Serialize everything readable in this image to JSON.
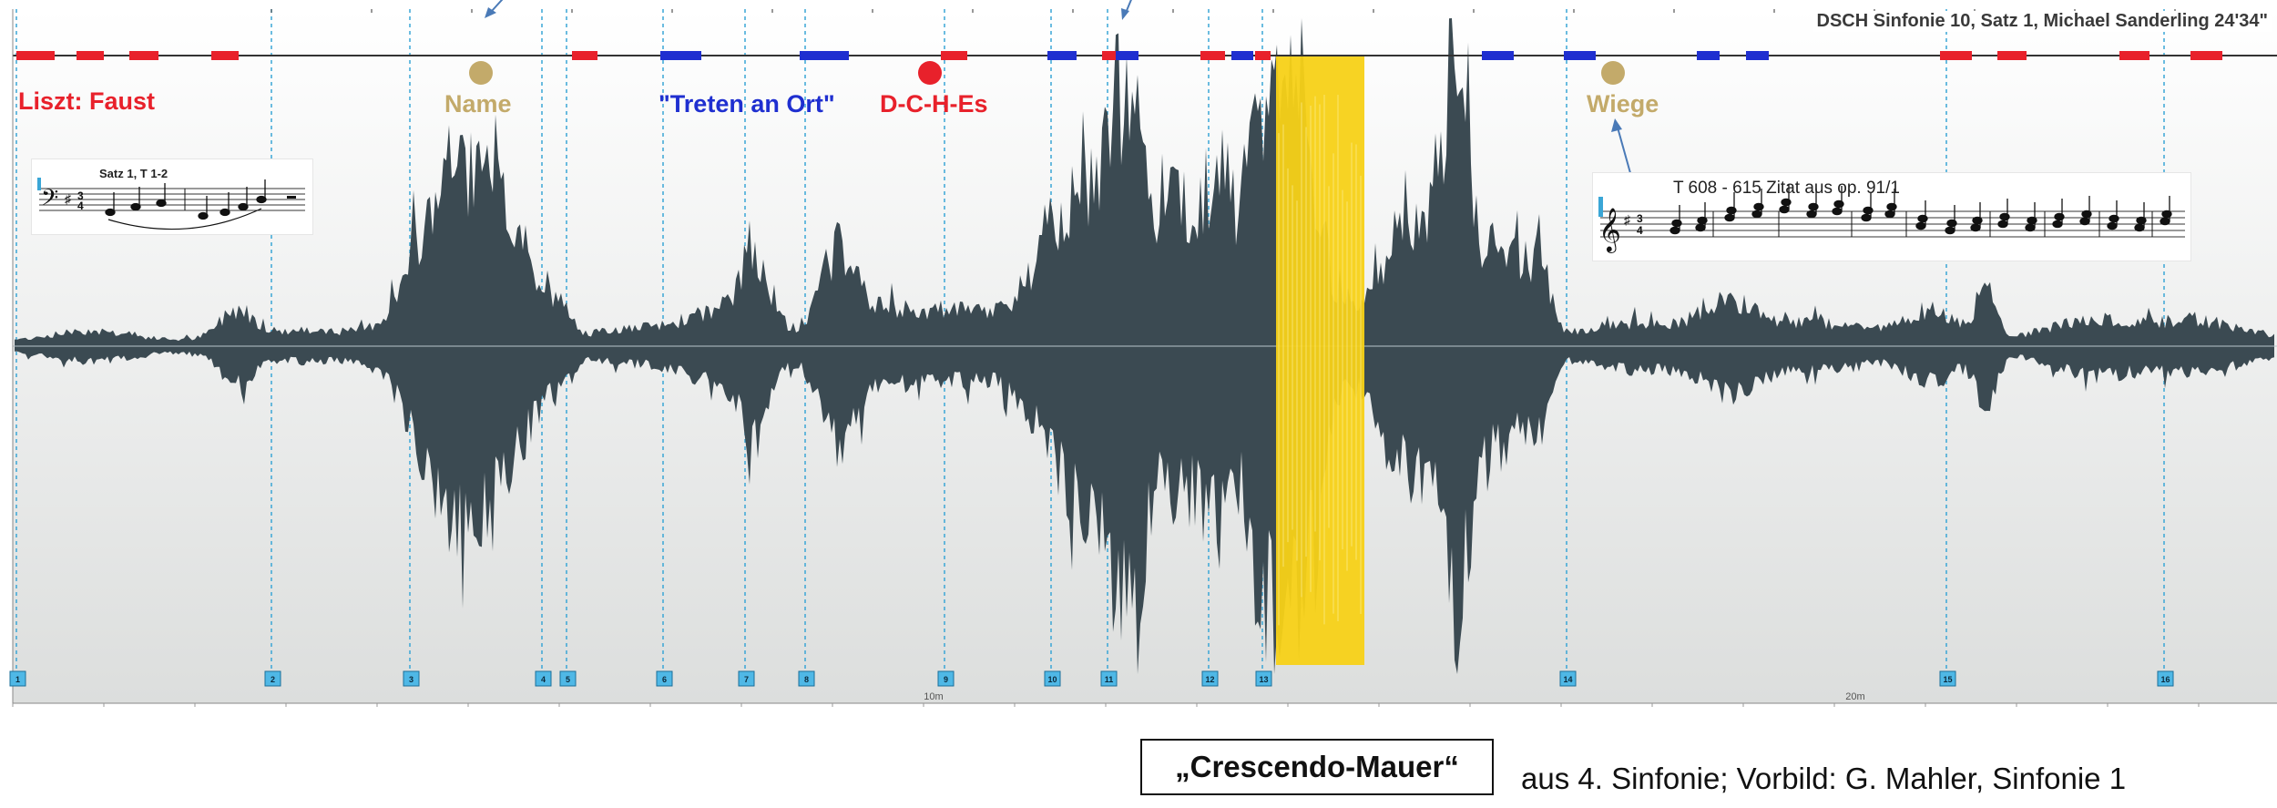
{
  "title": "DSCH Sinfonie 10, Satz 1, Michael Sanderling 24'34\"",
  "colors": {
    "red": "#e8212b",
    "blue": "#1f2fd0",
    "gold": "#c3aa6a",
    "waveform": "#3b4a52",
    "highlight": "#f7d117",
    "marker_line": "#3aa6d6",
    "background_top": "#ffffff",
    "background_bottom": "#dcdedd",
    "arrow": "#4a7ab7"
  },
  "labels": {
    "liszt": "Liszt: Faust",
    "name": "Name",
    "treten": "\"Treten an Ort\"",
    "dches": "D-C-H-Es",
    "wiege": "Wiege"
  },
  "score_left": {
    "caption": "Satz 1, T 1-2"
  },
  "score_right": {
    "caption": "T 608 - 615   Zitat aus op. 91/1"
  },
  "markers": [
    "1",
    "2",
    "3",
    "4",
    "5",
    "6",
    "7",
    "8",
    "9",
    "10",
    "11",
    "12",
    "13",
    "14",
    "15",
    "16"
  ],
  "time_axis": [
    "10m",
    "20m"
  ],
  "crescendo_box": "„Crescendo-Mauer“",
  "crescendo_caption": "aus 4. Sinfonie; Vorbild: G. Mahler, Sinfonie 1"
}
